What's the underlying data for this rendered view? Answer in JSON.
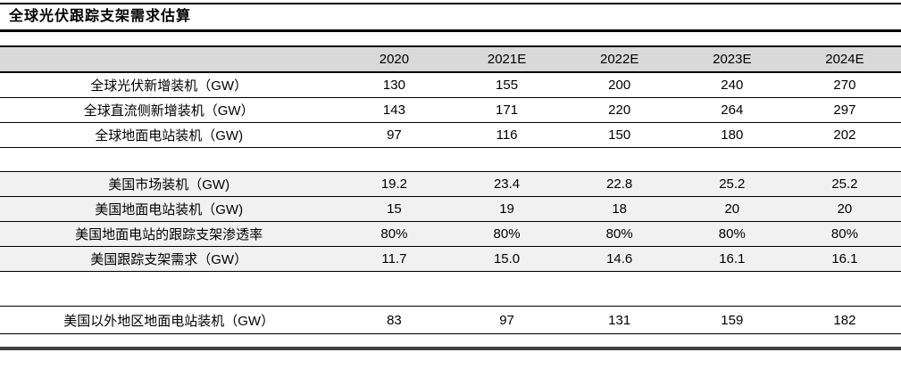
{
  "title": "全球光伏跟踪支架需求估算",
  "colors": {
    "header_bg": "#d9d9d9",
    "shaded_band_bg": "#f1f1f1",
    "rule_color": "#000000",
    "bottom_rule_color": "#404040"
  },
  "table": {
    "columns": [
      "",
      "2020",
      "2021E",
      "2022E",
      "2023E",
      "2024E"
    ],
    "sections": [
      {
        "shaded": false,
        "rows": [
          {
            "label": "全球光伏新增装机（GW）",
            "values": [
              "130",
              "155",
              "200",
              "240",
              "270"
            ]
          },
          {
            "label": "全球直流侧新增装机（GW）",
            "values": [
              "143",
              "171",
              "220",
              "264",
              "297"
            ]
          },
          {
            "label": "全球地面电站装机（GW)",
            "values": [
              "97",
              "116",
              "150",
              "180",
              "202"
            ]
          }
        ]
      },
      {
        "shaded": true,
        "rows": [
          {
            "label": "美国市场装机（GW)",
            "values": [
              "19.2",
              "23.4",
              "22.8",
              "25.2",
              "25.2"
            ]
          },
          {
            "label": "美国地面电站装机（GW)",
            "values": [
              "15",
              "19",
              "18",
              "20",
              "20"
            ]
          },
          {
            "label": "美国地面电站的跟踪支架渗透率",
            "values": [
              "80%",
              "80%",
              "80%",
              "80%",
              "80%"
            ]
          },
          {
            "label": "美国跟踪支架需求（GW）",
            "values": [
              "11.7",
              "15.0",
              "14.6",
              "16.1",
              "16.1"
            ]
          }
        ]
      },
      {
        "shaded": false,
        "rows": [
          {
            "label": "美国以外地区地面电站装机（GW）",
            "values": [
              "83",
              "97",
              "131",
              "159",
              "182"
            ]
          }
        ]
      }
    ]
  }
}
